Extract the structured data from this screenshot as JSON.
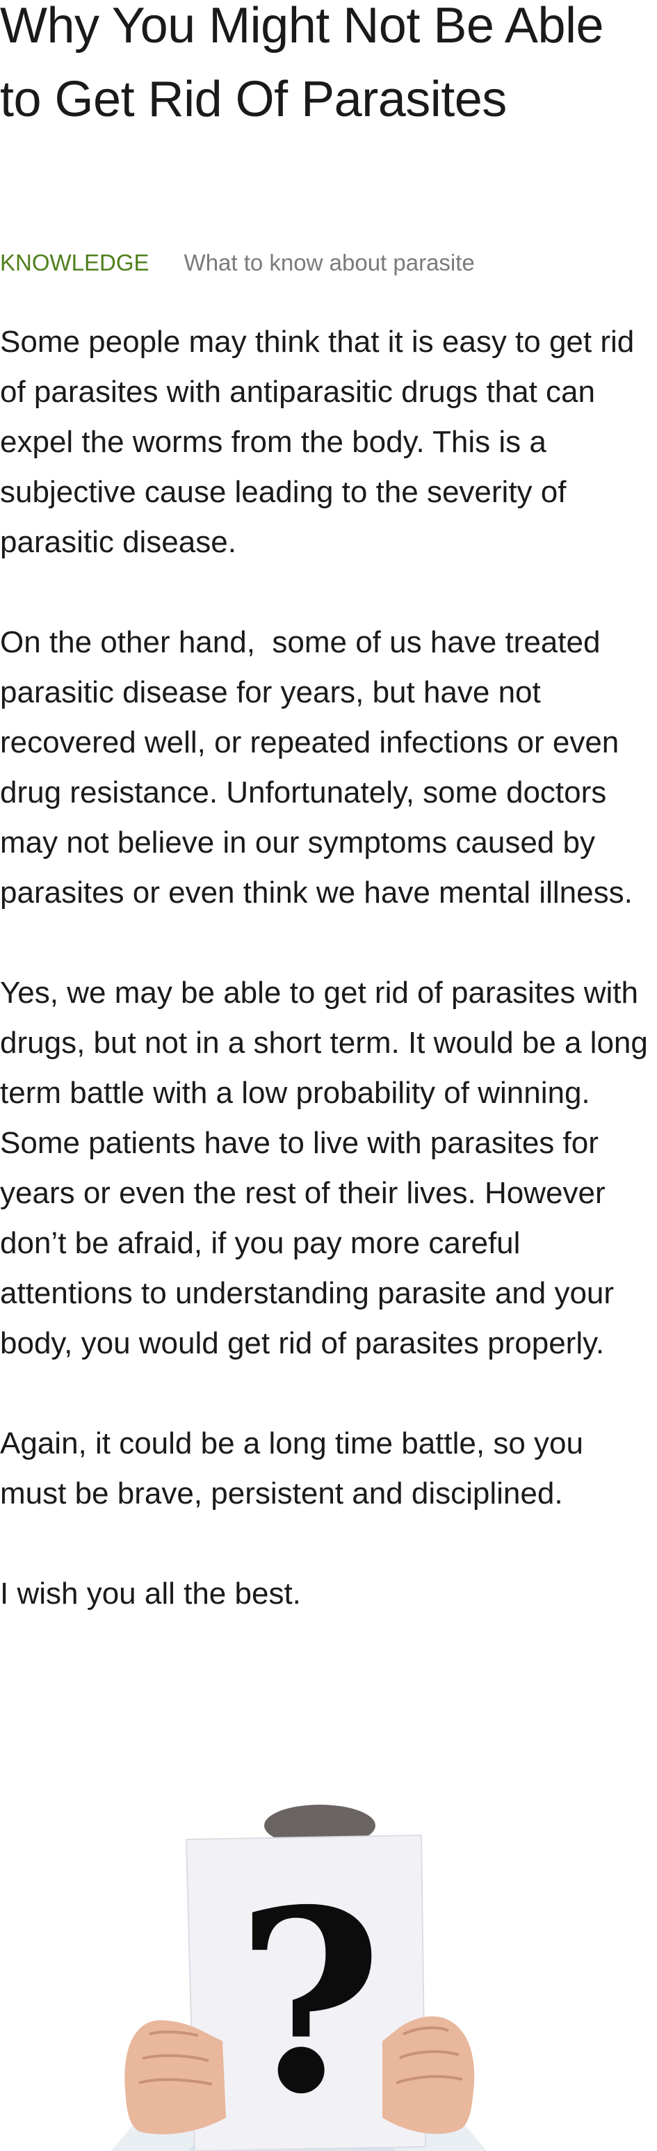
{
  "article": {
    "title": "Why You Might Not Be Able to Get Rid Of Parasites",
    "category": "KNOWLEDGE",
    "subtitle": "What to know about parasite",
    "paragraphs": [
      "Some people may think that it is easy to get rid of parasites with antiparasitic drugs that can expel the worms from the body. This is a subjective cause leading to the severity of parasitic disease.",
      "On the other hand,  some of us have treated parasitic disease for years, but have not recovered well, or repeated infections or even drug resistance. Unfortunately, some doctors may not believe in our symptoms caused by parasites or even think we have mental illness.",
      "Yes, we may be able to get rid of parasites with drugs, but not in a short term. It would be a long term battle with a low probability of winning. Some patients have to live with parasites for years or even the rest of their lives. However don’t be afraid, if you pay more careful attentions to understanding parasite and your body, you would get rid of parasites properly.",
      "Again, it could be a long time battle, so you must be brave, persistent and disciplined.",
      "I wish you all the best."
    ],
    "image": {
      "sign_text": "?"
    }
  },
  "colors": {
    "category": "#4f7f1c",
    "subtitle": "#7a7a7a",
    "text": "#1a1a1a"
  }
}
